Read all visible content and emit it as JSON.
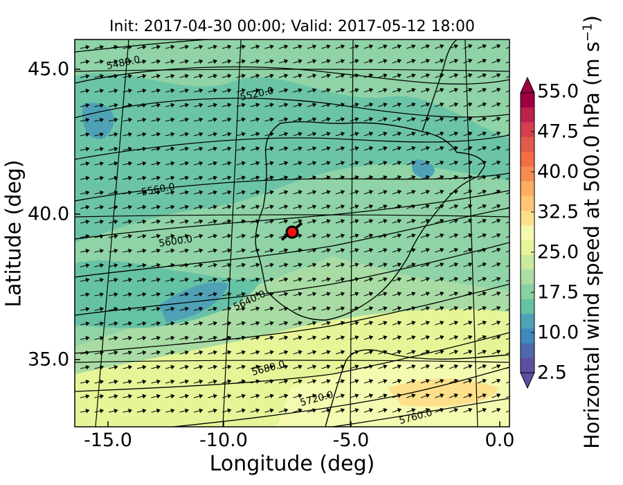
{
  "title": "Init: 2017-04-30 00:00; Valid: 2017-05-12 18:00",
  "xaxis": {
    "label": "Longitude (deg)",
    "ticks": [
      "-15.0",
      "-10.0",
      "-5.0",
      "0.0"
    ],
    "range": [
      -16,
      0
    ]
  },
  "yaxis": {
    "label": "Latitude (deg)",
    "ticks": [
      "45.0",
      "40.0",
      "35.0"
    ],
    "range": [
      32.8,
      46
    ]
  },
  "colorbar": {
    "label_prefix": "Horizontal wind speed at 500.0 hPa (m s",
    "label_exp": "−1",
    "label_suffix": ")",
    "ticks": [
      "55.0",
      "47.5",
      "40.0",
      "32.5",
      "25.0",
      "17.5",
      "10.0",
      "2.5"
    ],
    "range": [
      2.5,
      55
    ],
    "colors": [
      "#5e4fa2",
      "#4f6aad",
      "#3f88ba",
      "#4fa2b5",
      "#66c2a5",
      "#89d0a4",
      "#abdda4",
      "#c8e99e",
      "#e6f598",
      "#f4fab0",
      "#fee08b",
      "#fdc574",
      "#fdae61",
      "#f88d52",
      "#f46d43",
      "#e05c4a",
      "#d53e4f",
      "#b8224b",
      "#9e0142"
    ]
  },
  "contours": {
    "variable": "geopotential height",
    "labels": [
      "5480.0",
      "5520.0",
      "5560.0",
      "5600.0",
      "5640.0",
      "5680.0",
      "5720.0",
      "5760.0"
    ]
  },
  "marker": {
    "lon": -7.6,
    "lat": 39.3,
    "color": "#ee1111"
  },
  "grid": true,
  "colors": {
    "land_outline": "#000000",
    "contour": "#000000",
    "arrows": "#000000"
  }
}
